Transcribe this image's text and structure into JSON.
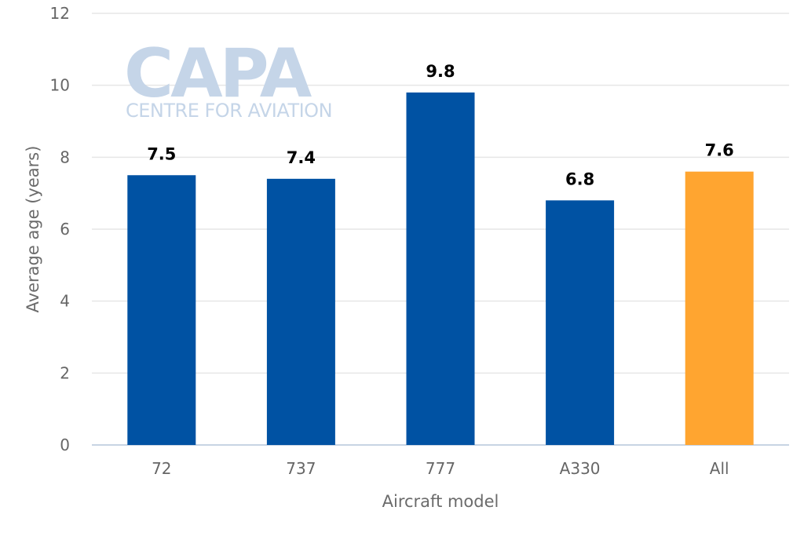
{
  "logo": {
    "name": "CAPA",
    "tagline": "CENTRE FOR AVIATION",
    "color": "#c5d5e8"
  },
  "chart_data": {
    "type": "bar",
    "categories": [
      "72",
      "737",
      "777",
      "A330",
      "All"
    ],
    "values": [
      7.5,
      7.4,
      9.8,
      6.8,
      7.6
    ],
    "data_labels": [
      "7.5",
      "7.4",
      "9.8",
      "6.8",
      "7.6"
    ],
    "bar_colors": [
      "#0052a3",
      "#0052a3",
      "#0052a3",
      "#0052a3",
      "#ffa530"
    ],
    "xlabel": "Aircraft model",
    "ylabel": "Average age (years)",
    "ylim": [
      0,
      12
    ],
    "yticks": [
      0,
      2,
      4,
      6,
      8,
      10,
      12
    ],
    "grid": true,
    "legend": "none"
  }
}
